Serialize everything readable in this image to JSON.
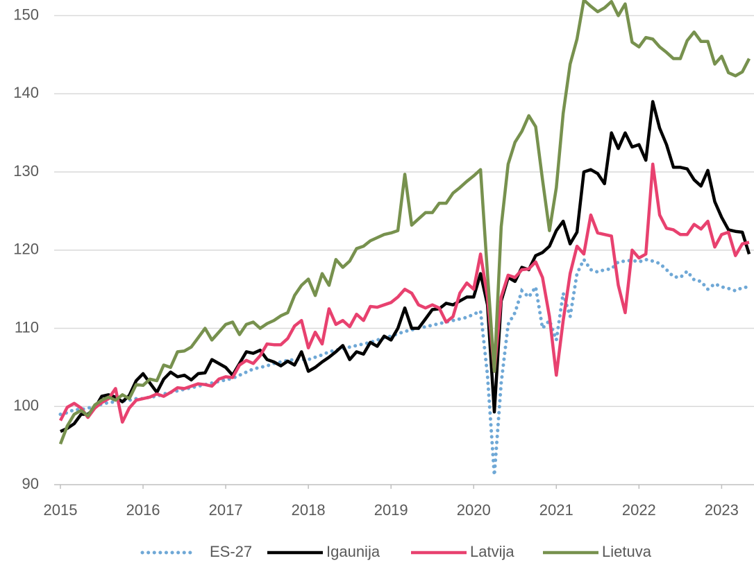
{
  "chart_data": {
    "type": "line",
    "x": [
      2015,
      2015.083,
      2015.167,
      2015.25,
      2015.333,
      2015.417,
      2015.5,
      2015.583,
      2015.667,
      2015.75,
      2015.833,
      2015.917,
      2016,
      2016.083,
      2016.167,
      2016.25,
      2016.333,
      2016.417,
      2016.5,
      2016.583,
      2016.667,
      2016.75,
      2016.833,
      2016.917,
      2017,
      2017.083,
      2017.167,
      2017.25,
      2017.333,
      2017.417,
      2017.5,
      2017.583,
      2017.667,
      2017.75,
      2017.833,
      2017.917,
      2018,
      2018.083,
      2018.167,
      2018.25,
      2018.333,
      2018.417,
      2018.5,
      2018.583,
      2018.667,
      2018.75,
      2018.833,
      2018.917,
      2019,
      2019.083,
      2019.167,
      2019.25,
      2019.333,
      2019.417,
      2019.5,
      2019.583,
      2019.667,
      2019.75,
      2019.833,
      2019.917,
      2020,
      2020.083,
      2020.167,
      2020.25,
      2020.333,
      2020.417,
      2020.5,
      2020.583,
      2020.667,
      2020.75,
      2020.833,
      2020.917,
      2021,
      2021.083,
      2021.167,
      2021.25,
      2021.333,
      2021.417,
      2021.5,
      2021.583,
      2021.667,
      2021.75,
      2021.833,
      2021.917,
      2022,
      2022.083,
      2022.167,
      2022.25,
      2022.333,
      2022.417,
      2022.5,
      2022.583,
      2022.667,
      2022.75,
      2022.833,
      2022.917,
      2023,
      2023.083,
      2023.167,
      2023.25,
      2023.333
    ],
    "xlim": [
      2015,
      2023.4
    ],
    "xticks": [
      2015,
      2016,
      2017,
      2018,
      2019,
      2020,
      2021,
      2022,
      2023
    ],
    "ylim": [
      90,
      152
    ],
    "yticks": [
      90,
      100,
      110,
      120,
      130,
      140,
      150
    ],
    "grid": true,
    "legend": "bottom",
    "series": [
      {
        "name": "ES-27",
        "color": "#6fa8d6",
        "line_style": "dotted",
        "values": [
          99,
          99.2,
          99.6,
          99.6,
          99.8,
          100,
          100.3,
          100.5,
          100.6,
          100.7,
          100.8,
          101,
          101,
          101.2,
          101.3,
          101.6,
          101.8,
          102,
          102.2,
          102.4,
          102.6,
          102.8,
          103,
          103.2,
          103.4,
          103.6,
          104,
          104.4,
          104.8,
          105,
          105.2,
          105.5,
          105.7,
          105.9,
          106,
          106,
          106,
          106.3,
          106.6,
          107,
          107.2,
          107.4,
          107.6,
          107.8,
          108,
          108.2,
          108.5,
          108.8,
          109,
          109.3,
          109.6,
          109.8,
          110,
          110.2,
          110.4,
          110.6,
          110.8,
          111,
          111.2,
          111.4,
          111.8,
          112.2,
          104,
          91.2,
          103,
          110.5,
          112,
          114.8,
          114,
          115.3,
          110,
          111,
          108.5,
          114.5,
          111.5,
          117,
          118.8,
          117.5,
          117.2,
          117.5,
          117.6,
          118.5,
          118.6,
          118.7,
          118.5,
          118.8,
          118.6,
          118.3,
          117.5,
          116.6,
          116.5,
          117.3,
          116.2,
          116,
          115,
          115.7,
          115.3,
          115.1,
          114.8,
          115.2,
          115.3
        ]
      },
      {
        "name": "Igaunija",
        "color": "#000000",
        "line_style": "solid",
        "values": [
          96.8,
          97.2,
          97.8,
          99,
          99,
          99.8,
          101.3,
          101.5,
          101.2,
          100.6,
          101.4,
          103.3,
          104.2,
          103,
          101.8,
          103.5,
          104.4,
          103.8,
          104,
          103.4,
          104.2,
          104.3,
          106,
          105.5,
          105,
          104,
          105.5,
          107,
          106.8,
          107.2,
          106,
          105.7,
          105.2,
          105.8,
          105.3,
          107,
          104.5,
          105,
          105.7,
          106.3,
          107,
          107.8,
          106,
          107,
          106.7,
          108.2,
          107.7,
          109,
          108.5,
          110,
          112.6,
          110,
          110,
          111.2,
          112.4,
          112.5,
          113.2,
          113,
          113.5,
          114,
          114,
          117,
          113,
          99.3,
          113.5,
          116.5,
          116,
          117.8,
          117.5,
          119.3,
          119.7,
          120.5,
          122.5,
          123.7,
          120.8,
          122.3,
          130,
          130.3,
          129.8,
          128.5,
          135,
          133,
          135,
          133.2,
          133.5,
          131.5,
          139,
          135.6,
          133.5,
          130.6,
          130.6,
          130.4,
          129,
          128.2,
          130.2,
          126.2,
          124.2,
          122.6,
          122.4,
          122.3,
          119.5
        ]
      },
      {
        "name": "Latvija",
        "color": "#e8416f",
        "line_style": "solid",
        "values": [
          98.2,
          99.9,
          100.4,
          99.8,
          98.6,
          99.8,
          100.5,
          101,
          102.3,
          98,
          99.8,
          100.8,
          101,
          101.2,
          101.6,
          101.3,
          101.8,
          102.4,
          102.3,
          102.6,
          102.9,
          102.8,
          102.6,
          103.5,
          103.8,
          103.7,
          105.3,
          105.9,
          105.5,
          106.5,
          108,
          107.9,
          107.9,
          108.7,
          110.3,
          111,
          107.5,
          109.5,
          108,
          112.5,
          110.5,
          111,
          110.2,
          111.8,
          111,
          112.8,
          112.7,
          113,
          113.3,
          114,
          115,
          114.5,
          113,
          112.6,
          113,
          112.6,
          110.8,
          111.5,
          114.5,
          115.8,
          115,
          119.5,
          114,
          104.5,
          114,
          116.8,
          116.5,
          117.5,
          117.6,
          118.5,
          116.5,
          111.5,
          104,
          111,
          117,
          120.5,
          119.5,
          124.5,
          122.2,
          122,
          121.8,
          115.5,
          112,
          120,
          119,
          119.5,
          131,
          124.5,
          122.8,
          122.6,
          122,
          122,
          123.3,
          122.7,
          123.7,
          120.4,
          122,
          122.3,
          119.3,
          120.8,
          121
        ]
      },
      {
        "name": "Lietuva",
        "color": "#77914e",
        "line_style": "solid",
        "values": [
          95.2,
          97.5,
          99,
          99.5,
          98.8,
          100.2,
          100.8,
          101.2,
          100.8,
          101.5,
          101,
          102.8,
          102.7,
          103.5,
          103.3,
          105.3,
          105,
          107,
          107.1,
          107.6,
          108.8,
          110,
          108.5,
          109.5,
          110.5,
          110.8,
          109.2,
          110.5,
          110.8,
          110,
          110.6,
          111,
          111.6,
          112,
          114.2,
          115.5,
          116.3,
          114.2,
          117,
          115.5,
          118.8,
          117.8,
          118.6,
          120.2,
          120.5,
          121.2,
          121.6,
          122,
          122.2,
          122.5,
          129.7,
          123.2,
          124,
          124.8,
          124.8,
          126,
          126,
          127.3,
          128,
          128.8,
          129.5,
          130.3,
          117,
          104.5,
          123,
          131,
          133.8,
          135.2,
          137.2,
          135.8,
          129,
          122.5,
          128,
          137.5,
          143.8,
          147,
          152,
          151.2,
          150.5,
          151,
          151.8,
          150,
          151.5,
          146.6,
          146,
          147.2,
          147,
          146,
          145.3,
          144.5,
          144.5,
          146.8,
          147.9,
          146.7,
          146.7,
          143.8,
          144.8,
          142.7,
          142.3,
          142.8,
          144.5
        ]
      }
    ]
  }
}
